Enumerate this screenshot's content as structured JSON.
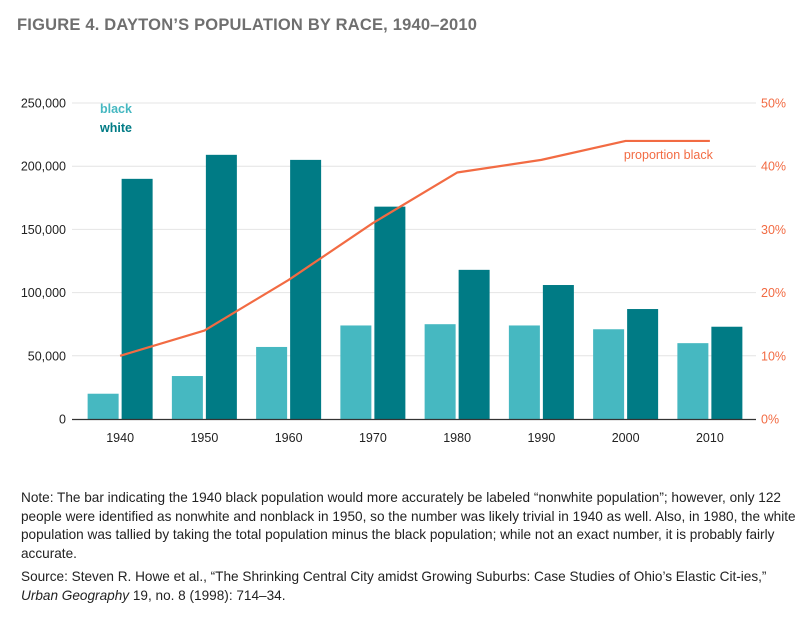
{
  "figure_title": "FIGURE 4. DAYTON’S POPULATION BY RACE, 1940–2010",
  "colors": {
    "black_bar": "#46b8c1",
    "white_bar": "#007b85",
    "proportion_line": "#f26b43",
    "grid": "#e4e4e4",
    "axis_text": "#222222",
    "right_axis_text": "#f26b43"
  },
  "chart_data": {
    "type": "bar",
    "categories": [
      "1940",
      "1950",
      "1960",
      "1970",
      "1980",
      "1990",
      "2000",
      "2010"
    ],
    "series": [
      {
        "name": "black",
        "values": [
          20000,
          34000,
          57000,
          74000,
          75000,
          74000,
          71000,
          60000
        ]
      },
      {
        "name": "white",
        "values": [
          190000,
          209000,
          205000,
          168000,
          118000,
          106000,
          87000,
          73000
        ]
      }
    ],
    "line_series": {
      "name": "proportion black",
      "axis": "right",
      "values": [
        0.1,
        0.14,
        0.22,
        0.31,
        0.39,
        0.41,
        0.44,
        0.44
      ]
    },
    "y_left": {
      "ylim": [
        0,
        250000
      ],
      "ticks": [
        "0",
        "50,000",
        "100,000",
        "150,000",
        "200,000",
        "250,000"
      ]
    },
    "y_right": {
      "ylim": [
        0,
        0.5
      ],
      "ticks": [
        "0%",
        "10%",
        "20%",
        "30%",
        "40%",
        "50%"
      ]
    },
    "legend": [
      "black",
      "white"
    ],
    "legend_position": "top-left",
    "grid": true
  },
  "note": "Note: The bar indicating the 1940 black population would more accurately be labeled “nonwhite population”; however, only 122 people were identified as nonwhite and nonblack in 1950, so the number was likely trivial in 1940 as well. Also, in 1980, the white population was tallied by taking the total population minus the black population; while not an exact number, it is probably fairly accurate.",
  "source": {
    "prefix": "Source: Steven R. Howe et al., “The Shrinking Central City amidst Growing Suburbs: Case Studies of Ohio’s Elastic Cit-ies,” ",
    "journal": "Urban Geography",
    "suffix": " 19, no. 8 (1998): 714–34."
  }
}
